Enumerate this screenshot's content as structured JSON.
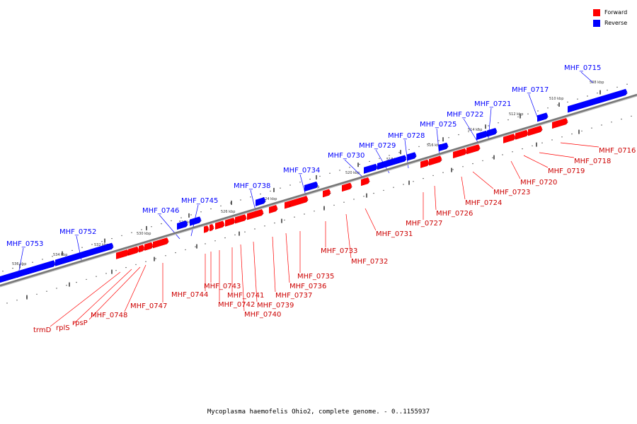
{
  "title": "Mycoplasma haemofelis Ohio2, complete genome. - 0..1155937",
  "legend": [
    {
      "label": "Forward",
      "color": "#ff0000"
    },
    {
      "label": "Reverse",
      "color": "#0000ff"
    }
  ],
  "colors": {
    "forward": "#ff0000",
    "reverse": "#0000ff",
    "backbone": "#777777"
  },
  "ticks": [
    "508 kbp",
    "510 kbp",
    "512 kbp",
    "514 kbp",
    "516 kbp",
    "518 kbp",
    "520 kbp",
    "522 kbp",
    "524 kbp",
    "526 kbp",
    "528 kbp",
    "530 kbp",
    "532 kbp",
    "534 kbp",
    "536 kbp"
  ],
  "reverse_genes": [
    "MHF_0715",
    "MHF_0717",
    "MHF_0721",
    "MHF_0722",
    "MHF_0725",
    "MHF_0728",
    "MHF_0729",
    "MHF_0730",
    "MHF_0734",
    "MHF_0738",
    "MHF_0745",
    "MHF_0746",
    "MHF_0752",
    "MHF_0753"
  ],
  "forward_genes": [
    "MHF_0716",
    "MHF_0718",
    "MHF_0719",
    "MHF_0720",
    "MHF_0723",
    "MHF_0724",
    "MHF_0726",
    "MHF_0727",
    "MHF_0731",
    "MHF_0732",
    "MHF_0733",
    "MHF_0735",
    "MHF_0736",
    "MHF_0737",
    "MHF_0739",
    "MHF_0740",
    "MHF_0741",
    "MHF_0742",
    "MHF_0743",
    "MHF_0744",
    "MHF_0747",
    "MHF_0748",
    "rpsP",
    "rplS",
    "trmD"
  ]
}
